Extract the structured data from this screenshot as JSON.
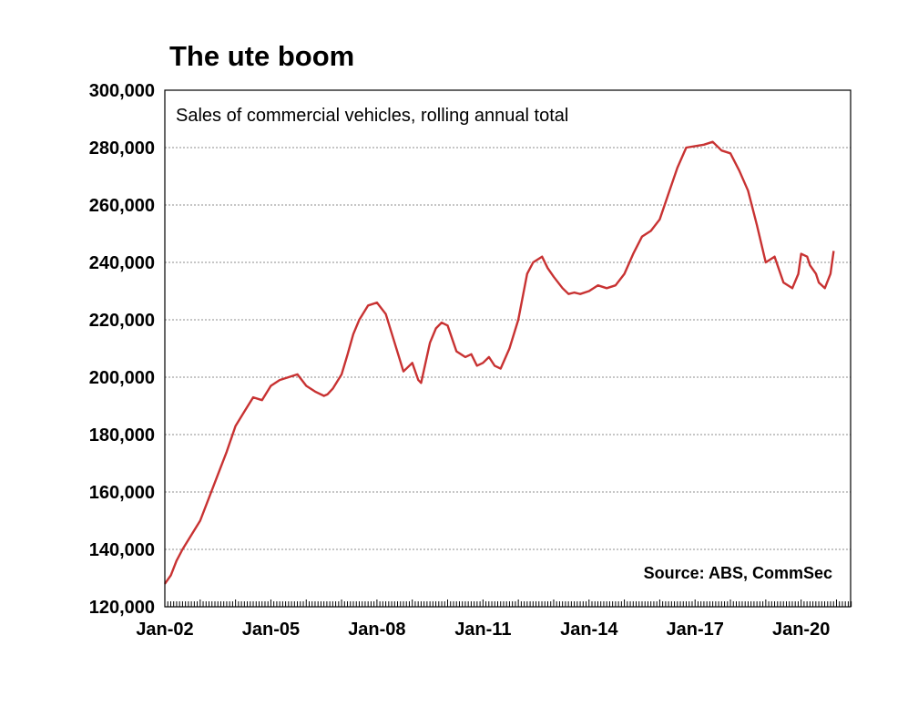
{
  "chart_data": {
    "type": "line",
    "title": "The ute boom",
    "subtitle": "Sales of commercial vehicles, rolling annual total",
    "source": "Source:  ABS, CommSec",
    "xlabel": "",
    "ylabel": "",
    "ylim": [
      120000,
      300000
    ],
    "yticks": [
      120000,
      140000,
      160000,
      180000,
      200000,
      220000,
      240000,
      260000,
      280000,
      300000
    ],
    "ytick_labels": [
      "120,000",
      "140,000",
      "160,000",
      "180,000",
      "200,000",
      "220,000",
      "240,000",
      "260,000",
      "280,000",
      "300,000"
    ],
    "xtick_labels": [
      "Jan-02",
      "Jan-05",
      "Jan-08",
      "Jan-11",
      "Jan-14",
      "Jan-17",
      "Jan-20"
    ],
    "xtick_years": [
      2002,
      2005,
      2008,
      2011,
      2014,
      2017,
      2020
    ],
    "xlim": [
      2002.0,
      2021.4
    ],
    "grid": true,
    "series": [
      {
        "name": "Sales of commercial vehicles, rolling annual total",
        "color": "#c83232",
        "x": [
          2002.0,
          2002.17,
          2002.33,
          2002.5,
          2002.75,
          2003.0,
          2003.25,
          2003.5,
          2003.75,
          2004.0,
          2004.25,
          2004.5,
          2004.75,
          2005.0,
          2005.25,
          2005.5,
          2005.75,
          2006.0,
          2006.25,
          2006.5,
          2006.6,
          2006.75,
          2007.0,
          2007.17,
          2007.33,
          2007.5,
          2007.75,
          2008.0,
          2008.25,
          2008.5,
          2008.75,
          2009.0,
          2009.17,
          2009.25,
          2009.5,
          2009.67,
          2009.83,
          2010.0,
          2010.25,
          2010.5,
          2010.67,
          2010.83,
          2011.0,
          2011.17,
          2011.33,
          2011.5,
          2011.75,
          2012.0,
          2012.25,
          2012.42,
          2012.67,
          2012.83,
          2013.0,
          2013.25,
          2013.42,
          2013.58,
          2013.75,
          2014.0,
          2014.25,
          2014.5,
          2014.75,
          2015.0,
          2015.25,
          2015.5,
          2015.75,
          2016.0,
          2016.25,
          2016.5,
          2016.75,
          2017.0,
          2017.25,
          2017.5,
          2017.75,
          2018.0,
          2018.25,
          2018.5,
          2018.75,
          2019.0,
          2019.25,
          2019.5,
          2019.75,
          2019.92,
          2020.0,
          2020.17,
          2020.25,
          2020.42,
          2020.5,
          2020.67,
          2020.83,
          2020.92
        ],
        "values": [
          128000,
          131000,
          136000,
          140000,
          145000,
          150000,
          158000,
          166000,
          174000,
          183000,
          188000,
          193000,
          192000,
          197000,
          199000,
          200000,
          201000,
          197000,
          195000,
          193500,
          194000,
          196000,
          201000,
          208000,
          215000,
          220000,
          225000,
          226000,
          222000,
          212000,
          202000,
          205000,
          199000,
          198000,
          212000,
          217000,
          219000,
          218000,
          209000,
          207000,
          208000,
          204000,
          205000,
          207000,
          204000,
          203000,
          210000,
          220000,
          236000,
          240000,
          242000,
          238000,
          235000,
          231000,
          229000,
          229500,
          229000,
          230000,
          232000,
          231000,
          232000,
          236000,
          243000,
          249000,
          251000,
          255000,
          264000,
          273000,
          280000,
          280500,
          281000,
          282000,
          279000,
          278000,
          272000,
          265000,
          253000,
          240000,
          242000,
          233000,
          231000,
          236000,
          243000,
          242000,
          239000,
          236000,
          233000,
          231000,
          236000,
          244000
        ]
      }
    ]
  }
}
